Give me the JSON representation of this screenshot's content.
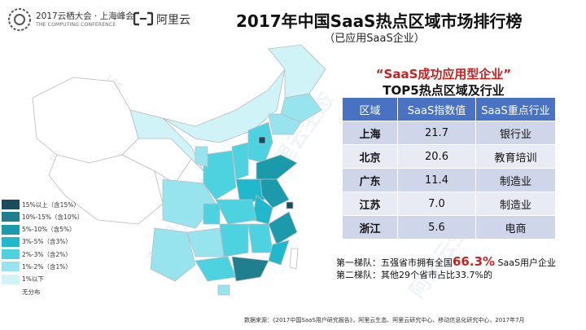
{
  "header": {
    "conference_name": "2017云栖大会 · 上海峰会",
    "conference_sub": "THE COMPUTING CONFERENCE",
    "brand_name": "阿里云",
    "title": "2017年中国SaaS热点区域市场排行榜",
    "subtitle": "（已应用SaaS企业）"
  },
  "watermark": [
    "阿里云生态",
    "阿里云生态",
    "阿里云生态",
    "阿里云生态"
  ],
  "chart_data": [
    {
      "type": "map",
      "legend": {
        "items": [
          {
            "label": "15%以上（含15%）",
            "color": "#1a4d5c"
          },
          {
            "label": "10%-15%（含10%）",
            "color": "#1f7f8f"
          },
          {
            "label": "5%-10%（含5%）",
            "color": "#1a9aab"
          },
          {
            "label": "3%-5%（含3%）",
            "color": "#20b8cc"
          },
          {
            "label": "2%-3%（含2%）",
            "color": "#4dd2e0"
          },
          {
            "label": "1%-2%（含1%）",
            "color": "#98e4ee"
          },
          {
            "label": "1%以下",
            "color": "#cff3f7"
          },
          {
            "label": "无分布",
            "color": "#ffffff"
          }
        ]
      },
      "regions": [
        {
          "name": "上海",
          "bucket": "15%以上（含15%）"
        },
        {
          "name": "北京",
          "bucket": "15%以上（含15%）"
        },
        {
          "name": "广东",
          "bucket": "10%-15%（含10%）"
        },
        {
          "name": "江苏",
          "bucket": "5%-10%（含5%）"
        },
        {
          "name": "浙江",
          "bucket": "5%-10%（含5%）"
        }
      ]
    },
    {
      "type": "table",
      "title": "“SaaS成功应用型企业”",
      "subtitle": "TOP5热点区域及行业",
      "columns": [
        "区域",
        "SaaS指数值",
        "SaaS重点行业"
      ],
      "rows": [
        [
          "上海",
          "21.7",
          "银行业"
        ],
        [
          "北京",
          "20.6",
          "教育培训"
        ],
        [
          "广东",
          "11.4",
          "制造业"
        ],
        [
          "江苏",
          "7.0",
          "制造业"
        ],
        [
          "浙江",
          "5.6",
          "电商"
        ]
      ],
      "values": [
        21.7,
        20.6,
        11.4,
        7.0,
        5.6
      ]
    }
  ],
  "notes": {
    "tier1_prefix": "第一梯队：五强省市拥有全国",
    "tier1_value": "66.3%",
    "tier1_suffix": " SaaS用户企业",
    "tier2": "第二梯队：其他29个省市占比33.7%的"
  },
  "source": "数据来源：《2017中国SaaS用户研究报告》，阿里云生态、阿里云研究中心、移动信息化研究中心，2017年7月"
}
